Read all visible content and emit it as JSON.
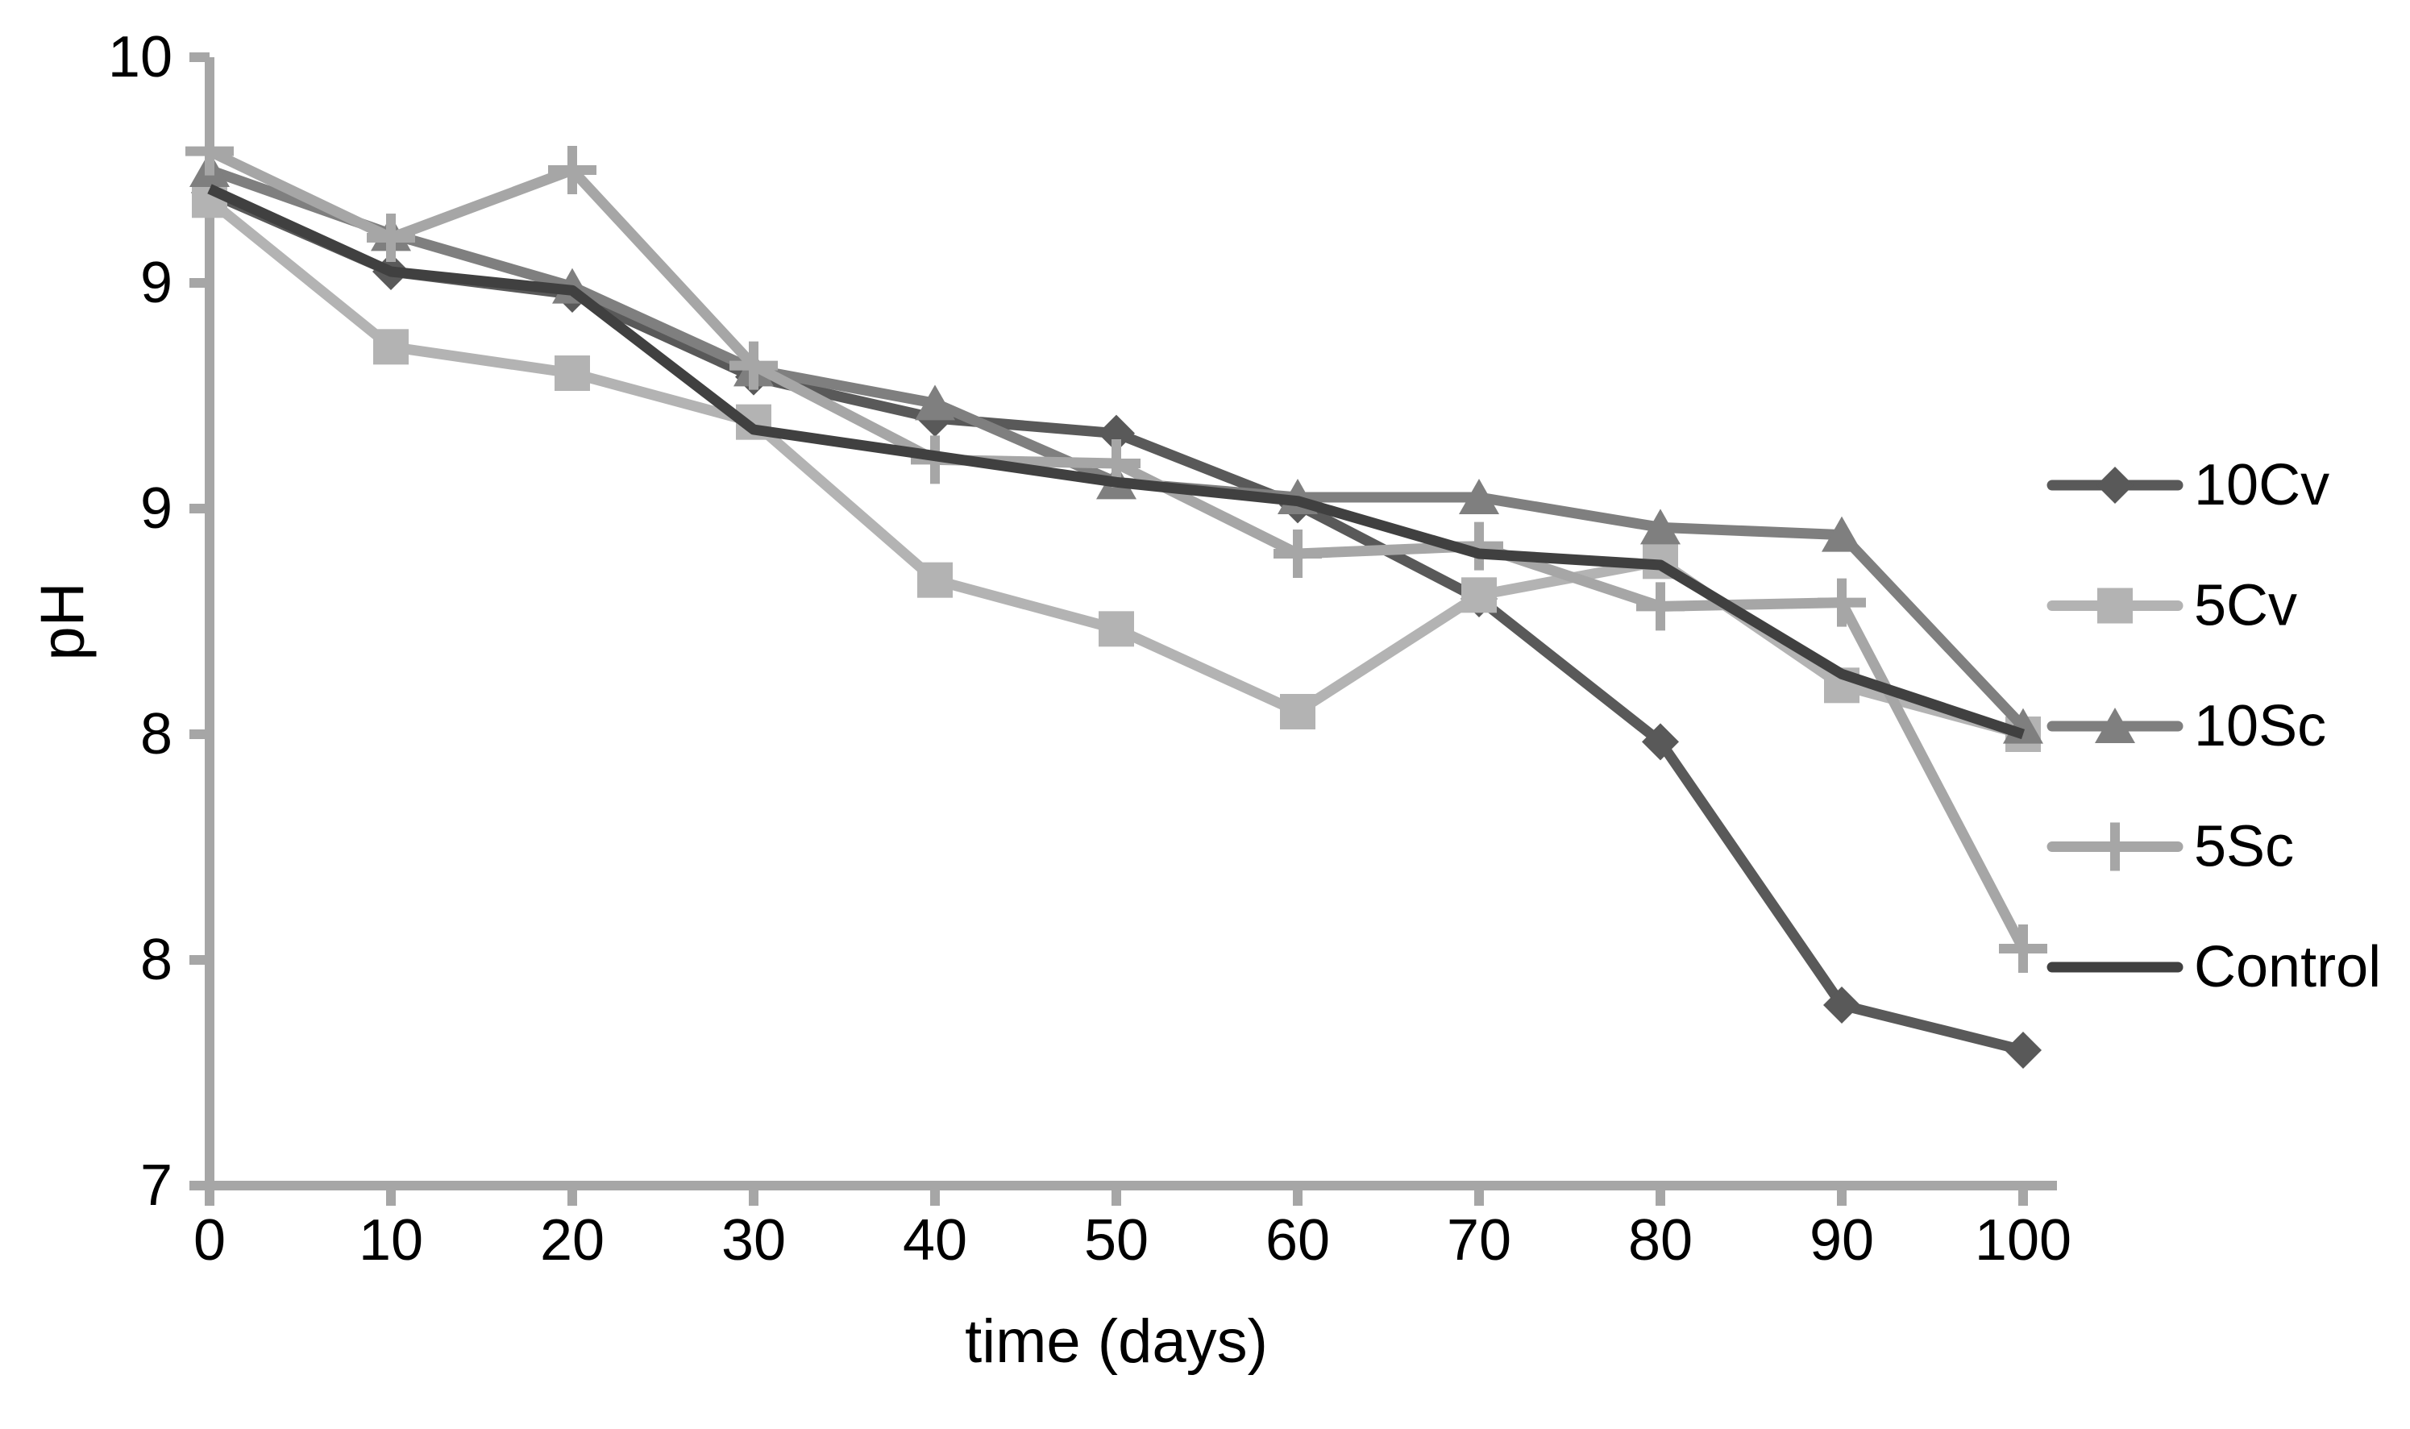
{
  "chart_data": {
    "type": "line",
    "title": "",
    "xlabel": "time (days)",
    "ylabel": "pH",
    "x": [
      0,
      10,
      20,
      30,
      40,
      50,
      60,
      70,
      80,
      90,
      100
    ],
    "x_tick_labels": [
      "0",
      "10",
      "20",
      "30",
      "40",
      "50",
      "60",
      "70",
      "80",
      "90",
      "100"
    ],
    "y_axis": {
      "min": 7,
      "max": 10,
      "major_unit": 0.6,
      "tick_values": [
        7,
        7.6,
        8.2,
        8.8,
        9.4,
        10
      ],
      "tick_labels": [
        "7",
        "8",
        "8",
        "9",
        "9",
        "10"
      ]
    },
    "grid": "off",
    "legend_position": "right",
    "axis_color": "#a6a6a6",
    "text_color": "#000000",
    "series": [
      {
        "name": "10Cv",
        "marker": "diamond",
        "color": "#595959",
        "values": [
          9.64,
          9.43,
          9.37,
          9.15,
          9.04,
          9.0,
          8.81,
          8.56,
          8.18,
          7.48,
          7.36
        ]
      },
      {
        "name": "5Cv",
        "marker": "square",
        "color": "#b3b3b3",
        "values": [
          9.62,
          9.23,
          9.16,
          9.03,
          8.61,
          8.48,
          8.26,
          8.57,
          8.66,
          8.33,
          8.2
        ]
      },
      {
        "name": "10Sc",
        "marker": "triangle",
        "color": "#7f7f7f",
        "values": [
          9.7,
          9.53,
          9.39,
          9.17,
          9.08,
          8.87,
          8.83,
          8.83,
          8.75,
          8.73,
          8.22
        ]
      },
      {
        "name": "5Sc",
        "marker": "plus",
        "color": "#a6a6a6",
        "values": [
          9.75,
          9.52,
          9.7,
          9.18,
          8.93,
          8.92,
          8.68,
          8.7,
          8.54,
          8.55,
          7.63
        ]
      },
      {
        "name": "Control",
        "marker": "none",
        "color": "#404040",
        "values": [
          9.65,
          9.43,
          9.38,
          9.01,
          8.94,
          8.87,
          8.82,
          8.68,
          8.65,
          8.36,
          8.2
        ]
      }
    ]
  }
}
